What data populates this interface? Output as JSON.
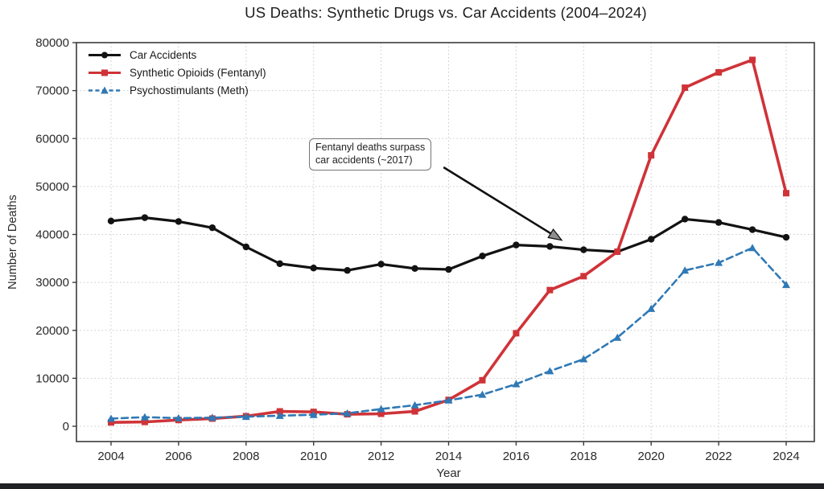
{
  "window": {
    "bottom_bar_color": "#202124"
  },
  "chart_data": {
    "type": "line",
    "title": "US Deaths: Synthetic Drugs vs. Car Accidents (2004–2024)",
    "xlabel": "Year",
    "ylabel": "Number of Deaths",
    "x": [
      2004,
      2005,
      2006,
      2007,
      2008,
      2009,
      2010,
      2011,
      2012,
      2013,
      2014,
      2015,
      2016,
      2017,
      2018,
      2019,
      2020,
      2021,
      2022,
      2023,
      2024
    ],
    "xticks": [
      2004,
      2006,
      2008,
      2010,
      2012,
      2014,
      2016,
      2018,
      2020,
      2022,
      2024
    ],
    "ylim": [
      0,
      80000
    ],
    "ytick_step": 10000,
    "grid": true,
    "legend_position": "upper-left",
    "grid_color": "#c9c9c9",
    "axis_text_color": "#2a2a2a",
    "series": [
      {
        "name": "Car Accidents",
        "color": "#121212",
        "line_style": "solid",
        "marker": "circle",
        "values": [
          42800,
          43500,
          42700,
          41400,
          37400,
          33900,
          33000,
          32500,
          33800,
          32900,
          32700,
          35500,
          37800,
          37500,
          36800,
          36400,
          39000,
          43200,
          42500,
          41000,
          39400
        ]
      },
      {
        "name": "Synthetic Opioids (Fentanyl)",
        "color": "#cf3338",
        "line_style": "solid",
        "marker": "square",
        "values": [
          800,
          900,
          1300,
          1600,
          2100,
          3100,
          3000,
          2500,
          2600,
          3100,
          5500,
          9600,
          19400,
          28400,
          31300,
          36400,
          56500,
          70600,
          73800,
          76400,
          48600
        ]
      },
      {
        "name": "Psychostimulants (Meth)",
        "color": "#2f79b5",
        "line_style": "dashed",
        "marker": "triangle-up",
        "values": [
          1600,
          1900,
          1700,
          1800,
          2000,
          2200,
          2400,
          2700,
          3600,
          4400,
          5400,
          6600,
          8800,
          11500,
          14000,
          18500,
          24500,
          32500,
          34100,
          37200,
          29500
        ]
      }
    ],
    "annotation": {
      "line1": "Fentanyl deaths surpass",
      "line2": "car accidents (~2017)",
      "arrow_from": [
        2013.85,
        54000
      ],
      "arrow_to": [
        2017.35,
        38800
      ]
    }
  }
}
